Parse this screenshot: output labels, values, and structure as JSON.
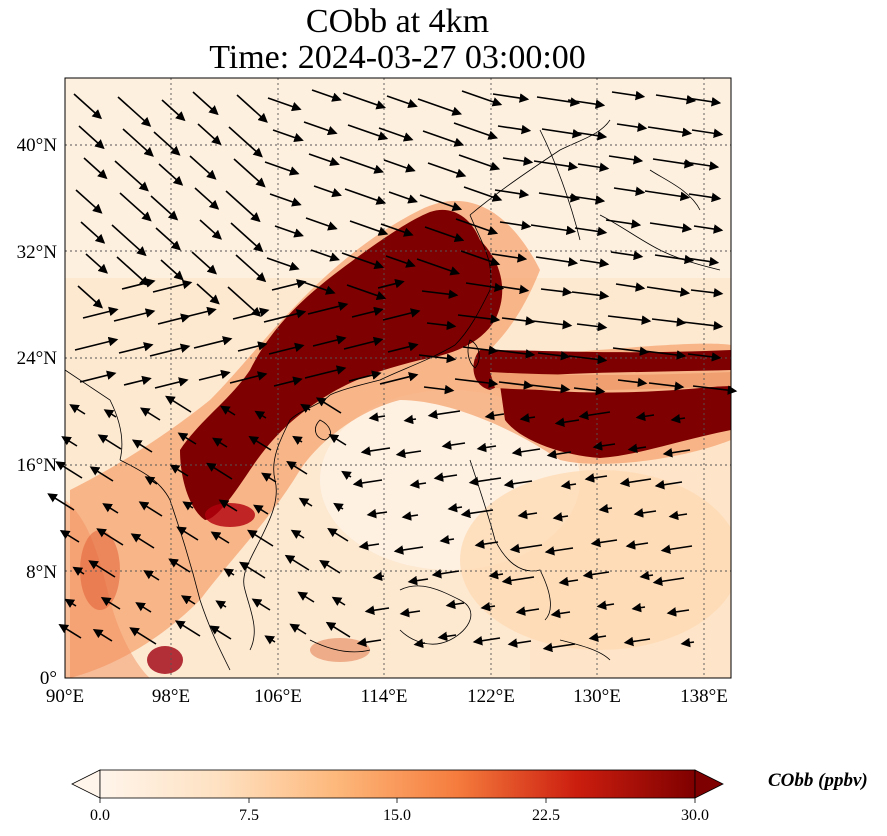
{
  "title": {
    "line1": "CObb at 4km",
    "line2": "Time: 2024-03-27 03:00:00"
  },
  "axes": {
    "x_ticks": [
      "90°E",
      "98°E",
      "106°E",
      "114°E",
      "122°E",
      "130°E",
      "138°E"
    ],
    "y_ticks": [
      "0°",
      "8°N",
      "16°N",
      "24°N",
      "32°N",
      "40°N"
    ],
    "gridlines": true
  },
  "colorbar": {
    "label": "CObb (ppbv)",
    "ticks": [
      "0.0",
      "7.5",
      "15.0",
      "22.5",
      "30.0"
    ],
    "colors": [
      "#fff5eb",
      "#fdd9b4",
      "#fda762",
      "#e45a31",
      "#b3000d",
      "#7f0000"
    ],
    "extend": "both"
  },
  "colors": {
    "plume": "#7f0000",
    "background": "#fde9d2",
    "vector": "#000000"
  }
}
